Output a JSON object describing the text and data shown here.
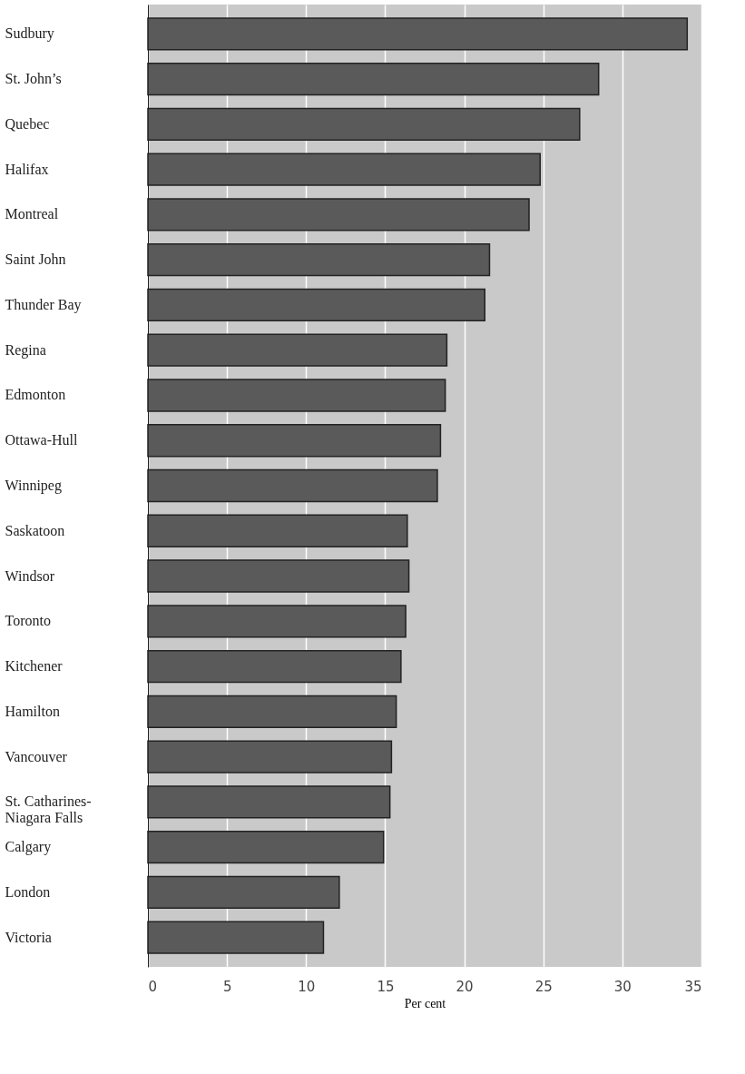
{
  "chart_data": {
    "type": "bar",
    "orientation": "horizontal",
    "xlabel": "Per cent",
    "categories": [
      "Sudbury",
      "St. John’s",
      "Quebec",
      "Halifax",
      "Montreal",
      "Saint John",
      "Thunder Bay",
      "Regina",
      "Edmonton",
      "Ottawa-Hull",
      "Winnipeg",
      "Saskatoon",
      "Windsor",
      "Toronto",
      "Kitchener",
      "Hamilton",
      "Vancouver",
      "St. Catharines-\nNiagara Falls",
      "Calgary",
      "London",
      "Victoria"
    ],
    "values": [
      34.1,
      28.5,
      27.3,
      24.8,
      24.1,
      21.6,
      21.3,
      18.9,
      18.8,
      18.5,
      18.3,
      16.4,
      16.5,
      16.3,
      16.0,
      15.7,
      15.4,
      15.3,
      14.9,
      12.1,
      11.1
    ],
    "color": "#5a5a5a",
    "xlim": [
      0,
      35
    ],
    "xticks": [
      0,
      5,
      10,
      15,
      20,
      25,
      30,
      35
    ],
    "grid": "x"
  }
}
